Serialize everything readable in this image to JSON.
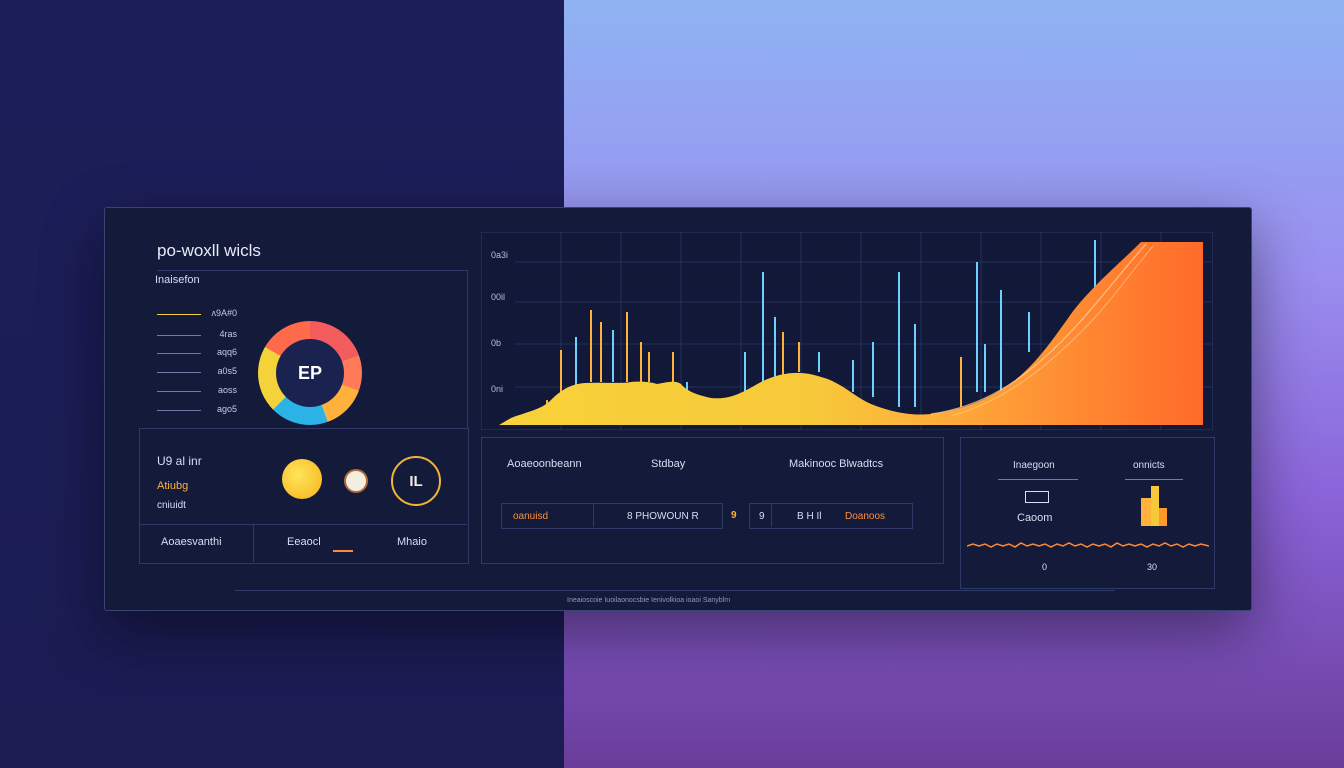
{
  "header": {
    "title": "po-woxll wicls",
    "subtitle": "Inaisefon"
  },
  "legend": {
    "items": [
      "ʌ9A#0",
      "4ras",
      "aqq6",
      "a0s5",
      "aoss",
      "ago5"
    ]
  },
  "donut": {
    "center_label": "EP"
  },
  "status": {
    "label1": "U9 al inr",
    "label2": "Atiubg",
    "label3": "cniuidt",
    "footer_left": "Aoaesvanthi",
    "footer_mid": "Eeaocl",
    "footer_right": "Mhaio"
  },
  "icons": {
    "gold_coin": "coin-icon",
    "small_badge": "badge-icon",
    "logo_ring": "ring-logo-icon",
    "ring_text": "IL"
  },
  "chart": {
    "ticks": [
      "0a3i",
      "00il",
      "0b",
      "0ni"
    ],
    "colors": {
      "yellow": "#f7c93a",
      "orange": "#ff8a3a",
      "bar": "#6fd0ff"
    }
  },
  "metrics": {
    "col1": "Aoaeoonbeann",
    "col2": "Stdbay",
    "col3": "Makinooc Blwadtcs",
    "tag1": "oanuisd",
    "tag2": "8 PHOWOUN R",
    "tag3": "9",
    "tag4": "9",
    "tag5": "B H Il",
    "tag6": "Doanoos"
  },
  "right_panel": {
    "col1": "Inaegoon",
    "col2": "onnicts",
    "icon_label": "Caoom",
    "foot1": "0",
    "foot2": "30"
  },
  "footer": {
    "text": "Ineaioscoie Iuoilaonocsbie Ienivolkioa ioaoi Sanyblm"
  }
}
